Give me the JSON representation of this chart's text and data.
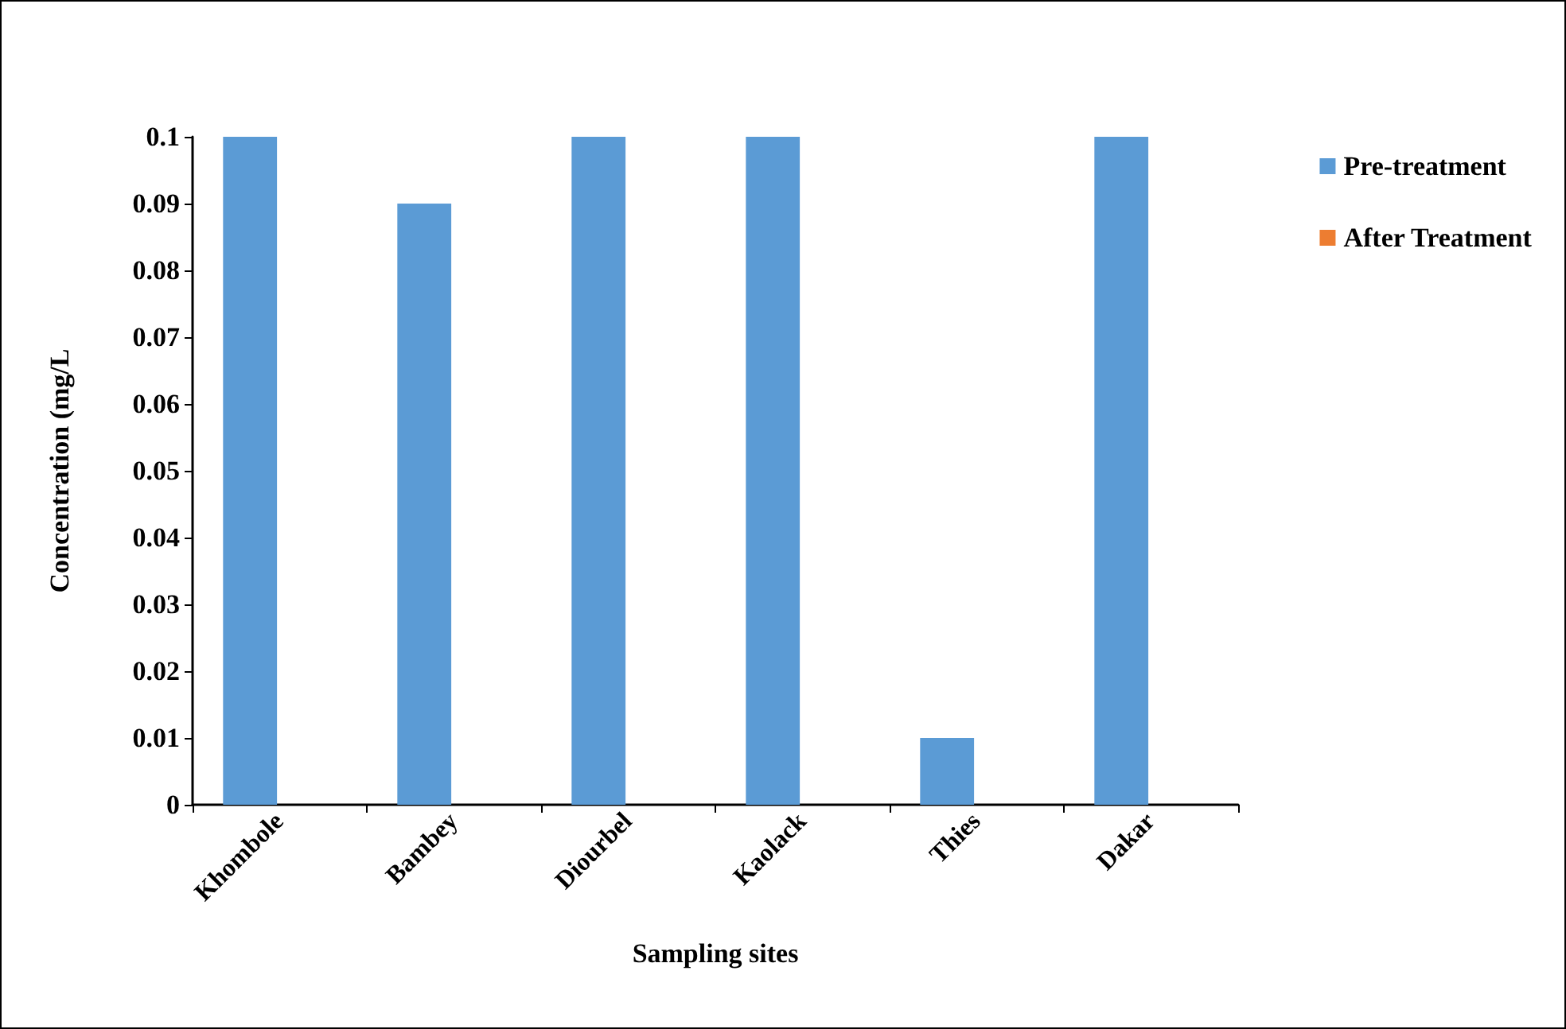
{
  "chart_data": {
    "type": "bar",
    "xlabel": "Sampling sites",
    "ylabel": "Concentration (mg/L",
    "categories": [
      "Khombole",
      "Bambey",
      "Diourbel",
      "Kaolack",
      "Thies",
      "Dakar"
    ],
    "series": [
      {
        "name": "Pre-treatment",
        "color": "#5b9bd5",
        "values": [
          0.1,
          0.09,
          0.1,
          0.1,
          0.01,
          0.1
        ]
      },
      {
        "name": "After Treatment",
        "color": "#ed7d31",
        "values": [
          0,
          0,
          0,
          0,
          0,
          0
        ]
      }
    ],
    "ylim": [
      0,
      0.1
    ],
    "yticks": [
      0,
      0.01,
      0.02,
      0.03,
      0.04,
      0.05,
      0.06,
      0.07,
      0.08,
      0.09,
      0.1
    ],
    "grid": false,
    "legend": "right"
  }
}
